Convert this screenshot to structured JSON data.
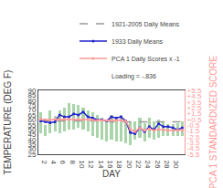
{
  "chart_data": {
    "type": "bar",
    "title": "",
    "xlabel": "DAY",
    "ylabel": "TEMPERATURE (DEG F)",
    "y2label": "PCA 1 STANDARDIZED SCORE",
    "x": [
      1,
      2,
      3,
      4,
      5,
      6,
      7,
      8,
      9,
      10,
      11,
      12,
      13,
      14,
      15,
      16,
      17,
      18,
      19,
      20,
      21,
      22,
      23,
      24,
      25,
      26,
      27,
      28,
      29,
      30,
      31
    ],
    "xlim": [
      0.5,
      31.5
    ],
    "xticks": [
      2,
      4,
      6,
      8,
      10,
      12,
      14,
      16,
      18,
      20,
      22,
      24,
      26,
      28,
      30
    ],
    "ylim": [
      25,
      90
    ],
    "yticks": [
      25,
      30,
      35,
      40,
      45,
      50,
      55,
      60,
      65,
      70,
      75,
      80,
      85,
      90
    ],
    "y2lim": [
      -5.5,
      5.5
    ],
    "y2ticks": [
      -5.5,
      -4.5,
      -3.5,
      -2.5,
      -1.5,
      -0.5,
      {
        "value": 0.5,
        "label": "+0.5"
      },
      {
        "value": 1.5,
        "label": "+1.5"
      },
      {
        "value": 2.5,
        "label": "+2.5"
      },
      {
        "value": 3.5,
        "label": "+3.5"
      },
      {
        "value": 4.5,
        "label": "+4.5"
      },
      {
        "value": 5.5,
        "label": "+5.5"
      }
    ],
    "grid": false,
    "legend": "upper right",
    "series": [
      {
        "type": "bar",
        "color": "#aad4aa",
        "values": [
          68,
          55,
          70,
          64,
          70,
          72,
          77,
          76,
          75,
          72,
          70,
          68,
          65,
          62,
          60,
          65,
          63,
          65,
          60,
          58,
          58,
          62,
          57,
          62,
          58,
          60,
          58,
          56,
          56,
          57,
          58
        ],
        "bottoms": [
          46,
          44,
          46,
          48,
          46,
          48,
          50,
          50,
          52,
          50,
          48,
          44,
          42,
          40,
          38,
          40,
          38,
          38,
          36,
          34,
          40,
          42,
          38,
          42,
          40,
          42,
          44,
          44,
          44,
          44,
          44
        ]
      },
      {
        "type": "line",
        "name": "1921-2005 Daily Means",
        "color": "#999999",
        "line_style": "dashed",
        "values": [
          59,
          59,
          59,
          59,
          59,
          59,
          59,
          59,
          59,
          59,
          59,
          59,
          59,
          59,
          59,
          58,
          58,
          58,
          58,
          58,
          58,
          58,
          58,
          58,
          58,
          58,
          58,
          58,
          58,
          58,
          58
        ]
      },
      {
        "type": "line",
        "name": "1933 Daily Means",
        "color": "#2222cc",
        "line_style": "solid",
        "marker": "circle",
        "values": [
          59,
          58,
          57,
          58,
          65,
          63,
          63,
          66,
          65,
          68,
          63,
          62,
          60,
          60,
          59,
          63,
          62,
          63,
          59,
          47,
          46,
          52,
          48,
          53,
          50,
          56,
          53,
          53,
          52,
          50,
          52
        ]
      },
      {
        "type": "line",
        "name": "PCA 1 Daily Scores x -1",
        "color": "#ff9999",
        "line_style": "solid",
        "marker": "circle",
        "axis": "y2",
        "values": [
          0.55,
          0.45,
          0.4,
          0.5,
          0.5,
          0.52,
          0.52,
          0.48,
          0.52,
          0.48,
          0.48,
          0.4,
          0.35,
          0.35,
          0.3,
          0.35,
          0.32,
          0.35,
          0.2,
          -1.2,
          -1.6,
          -1.0,
          -1.4,
          -1.1,
          -1.4,
          -1.2,
          -1.3,
          -1.4,
          -1.4,
          -1.35,
          -1.35
        ]
      }
    ],
    "annotations": [
      {
        "text": "Loading = -.836"
      }
    ]
  }
}
